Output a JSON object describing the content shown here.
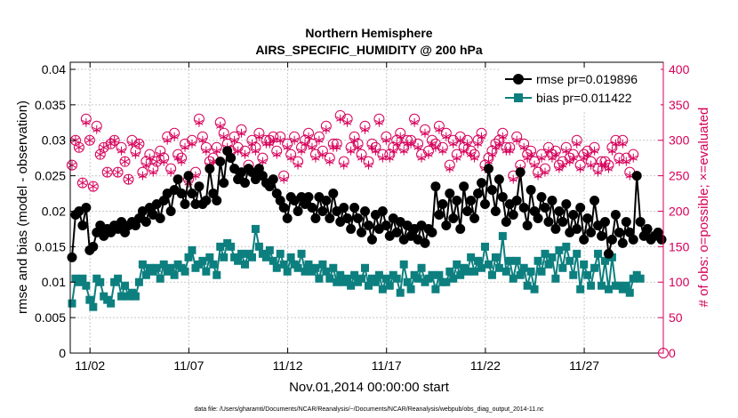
{
  "chart_data": {
    "type": "line",
    "title_line1": "Northern Hemisphere",
    "title_line2": "AIRS_SPECIFIC_HUMIDITY @ 200 hPa",
    "xlabel": "Nov.01,2014 00:00:00 start",
    "ylabel_left": "rmse and bias (model - observation)",
    "ylabel_right": "# of obs: o=possible; ×=evaluated",
    "footer": "data file: /Users/gharamti/Documents/NCAR/Reanalysis/~/Documents/NCAR/Reanalysis/webpub/obs_diag_output_2014-11.nc",
    "xlim": [
      0,
      30
    ],
    "ylim_left": [
      0,
      0.041
    ],
    "ylim_right": [
      0,
      410
    ],
    "x_ticks": [
      1,
      6,
      11,
      16,
      21,
      26
    ],
    "x_tick_labels": [
      "11/02",
      "11/07",
      "11/12",
      "11/17",
      "11/22",
      "11/27"
    ],
    "y_left_ticks": [
      0,
      0.005,
      0.01,
      0.015,
      0.02,
      0.025,
      0.03,
      0.035,
      0.04
    ],
    "y_left_tick_labels": [
      "0",
      "0.005",
      "0.01",
      "0.015",
      "0.02",
      "0.025",
      "0.03",
      "0.035",
      "0.04"
    ],
    "y_right_ticks": [
      0,
      50,
      100,
      150,
      200,
      250,
      300,
      350,
      400
    ],
    "y_right_tick_labels": [
      "0",
      "50",
      "100",
      "150",
      "200",
      "250",
      "300",
      "350",
      "400"
    ],
    "legend_position": "top-right",
    "grid": true,
    "colors": {
      "rmse": "#000000",
      "bias": "#0d7f7f",
      "obs": "#d6005a",
      "grid": "#c8c8c8"
    },
    "series": [
      {
        "name": "rmse pr=0.019896",
        "marker": "circle",
        "axis": "left",
        "values": [
          0.0135,
          0.0195,
          0.02,
          0.018,
          0.0205,
          0.0145,
          0.015,
          0.017,
          0.018,
          0.0165,
          0.0175,
          0.017,
          0.018,
          0.0175,
          0.0185,
          0.017,
          0.018,
          0.0185,
          0.018,
          0.019,
          0.02,
          0.0185,
          0.0205,
          0.0195,
          0.021,
          0.019,
          0.0215,
          0.0225,
          0.02,
          0.023,
          0.0245,
          0.0225,
          0.021,
          0.025,
          0.0225,
          0.021,
          0.0235,
          0.021,
          0.0215,
          0.026,
          0.0225,
          0.0215,
          0.027,
          0.024,
          0.0285,
          0.0275,
          0.026,
          0.0245,
          0.0255,
          0.024,
          0.026,
          0.0255,
          0.0245,
          0.026,
          0.025,
          0.024,
          0.0235,
          0.0245,
          0.0225,
          0.0215,
          0.0205,
          0.019,
          0.022,
          0.0215,
          0.02,
          0.022,
          0.021,
          0.022,
          0.0205,
          0.019,
          0.022,
          0.02,
          0.0215,
          0.019,
          0.0225,
          0.02,
          0.0185,
          0.0205,
          0.019,
          0.0175,
          0.0205,
          0.019,
          0.017,
          0.02,
          0.018,
          0.016,
          0.0195,
          0.0175,
          0.02,
          0.018,
          0.0165,
          0.019,
          0.017,
          0.0185,
          0.016,
          0.018,
          0.0165,
          0.0175,
          0.016,
          0.018,
          0.0155,
          0.0175,
          0.017,
          0.0235,
          0.0195,
          0.021,
          0.018,
          0.0225,
          0.019,
          0.0215,
          0.0175,
          0.0235,
          0.02,
          0.0215,
          0.019,
          0.0225,
          0.024,
          0.021,
          0.026,
          0.023,
          0.02,
          0.0245,
          0.022,
          0.0185,
          0.021,
          0.0195,
          0.0215,
          0.0255,
          0.0205,
          0.018,
          0.023,
          0.02,
          0.019,
          0.022,
          0.0205,
          0.0185,
          0.0215,
          0.0175,
          0.02,
          0.0185,
          0.021,
          0.017,
          0.0195,
          0.0175,
          0.0205,
          0.016,
          0.019,
          0.017,
          0.0215,
          0.018,
          0.0165,
          0.0185,
          0.014,
          0.016,
          0.0195,
          0.017,
          0.0155,
          0.0185,
          0.017,
          0.016,
          0.025,
          0.0185,
          0.0165,
          0.0175,
          0.016,
          0.0165,
          0.017,
          0.016
        ]
      },
      {
        "name": "bias pr=0.011422",
        "marker": "square",
        "axis": "left",
        "values": [
          0.007,
          0.0105,
          0.01,
          0.0105,
          0.0095,
          0.0075,
          0.0065,
          0.0105,
          0.01,
          0.008,
          0.0075,
          0.007,
          0.01,
          0.0105,
          0.008,
          0.0095,
          0.008,
          0.0085,
          0.008,
          0.01,
          0.0125,
          0.011,
          0.012,
          0.0115,
          0.012,
          0.0105,
          0.0125,
          0.0115,
          0.012,
          0.011,
          0.0125,
          0.012,
          0.0115,
          0.0135,
          0.0145,
          0.012,
          0.0125,
          0.013,
          0.0115,
          0.0135,
          0.0125,
          0.011,
          0.015,
          0.0135,
          0.0155,
          0.015,
          0.0135,
          0.013,
          0.014,
          0.0125,
          0.014,
          0.0135,
          0.0175,
          0.015,
          0.014,
          0.0135,
          0.0145,
          0.013,
          0.012,
          0.014,
          0.0125,
          0.0115,
          0.0135,
          0.0125,
          0.012,
          0.014,
          0.0115,
          0.0125,
          0.0115,
          0.012,
          0.0105,
          0.0125,
          0.0115,
          0.0105,
          0.012,
          0.01,
          0.011,
          0.01,
          0.0105,
          0.0095,
          0.011,
          0.01,
          0.0105,
          0.012,
          0.0095,
          0.0105,
          0.01,
          0.011,
          0.009,
          0.0105,
          0.0095,
          0.011,
          0.0105,
          0.0085,
          0.0125,
          0.01,
          0.009,
          0.011,
          0.0105,
          0.012,
          0.01,
          0.0105,
          0.011,
          0.009,
          0.011,
          0.01,
          0.01,
          0.0115,
          0.0105,
          0.0125,
          0.011,
          0.012,
          0.0115,
          0.0135,
          0.0115,
          0.013,
          0.012,
          0.015,
          0.0125,
          0.011,
          0.0135,
          0.012,
          0.0165,
          0.0115,
          0.013,
          0.0105,
          0.013,
          0.011,
          0.012,
          0.0095,
          0.0115,
          0.009,
          0.013,
          0.0115,
          0.014,
          0.0125,
          0.0135,
          0.0105,
          0.0145,
          0.012,
          0.015,
          0.013,
          0.011,
          0.014,
          0.009,
          0.0125,
          0.011,
          0.0095,
          0.012,
          0.014,
          0.0095,
          0.013,
          0.009,
          0.0135,
          0.0095,
          0.0095,
          0.009,
          0.0095,
          0.0085,
          0.0105,
          0.011,
          0.0105
        ]
      },
      {
        "name": "possible",
        "marker": "open-circle",
        "axis": "right",
        "values": [
          265,
          300,
          290,
          240,
          330,
          300,
          235,
          320,
          280,
          290,
          255,
          295,
          300,
          255,
          290,
          270,
          245,
          300,
          285,
          295,
          255,
          270,
          280,
          260,
          270,
          285,
          275,
          305,
          260,
          310,
          280,
          275,
          295,
          245,
          300,
          255,
          330,
          305,
          290,
          270,
          275,
          290,
          325,
          310,
          295,
          285,
          305,
          290,
          315,
          285,
          265,
          300,
          290,
          310,
          275,
          300,
          300,
          305,
          285,
          305,
          250,
          295,
          280,
          305,
          270,
          290,
          300,
          310,
          295,
          280,
          305,
          285,
          320,
          275,
          295,
          295,
          335,
          270,
          330,
          290,
          305,
          295,
          280,
          320,
          270,
          295,
          290,
          330,
          280,
          305,
          280,
          290,
          300,
          310,
          290,
          300,
          300,
          330,
          295,
          280,
          315,
          285,
          300,
          295,
          320,
          290,
          310,
          265,
          300,
          280,
          305,
          290,
          300,
          285,
          280,
          300,
          310,
          265,
          275,
          285,
          295,
          300,
          310,
          290,
          290,
          250,
          305,
          265,
          295,
          280,
          285,
          270,
          255,
          280,
          260,
          290,
          280,
          285,
          265,
          270,
          290,
          275,
          280,
          300,
          265,
          280,
          285,
          270,
          290,
          260,
          270,
          270,
          265,
          290,
          300,
          275,
          300,
          275,
          255,
          280
        ]
      },
      {
        "name": "evaluated",
        "marker": "asterisk",
        "axis": "right",
        "values": [
          265,
          300,
          290,
          240,
          325,
          300,
          235,
          315,
          280,
          290,
          255,
          295,
          300,
          255,
          285,
          270,
          245,
          295,
          280,
          295,
          250,
          265,
          275,
          255,
          270,
          280,
          270,
          300,
          255,
          305,
          275,
          270,
          290,
          240,
          295,
          250,
          325,
          300,
          285,
          265,
          270,
          285,
          320,
          305,
          290,
          280,
          300,
          285,
          310,
          280,
          260,
          295,
          285,
          305,
          270,
          295,
          295,
          300,
          280,
          300,
          245,
          290,
          275,
          300,
          265,
          285,
          295,
          305,
          290,
          275,
          300,
          280,
          315,
          270,
          290,
          290,
          330,
          265,
          325,
          285,
          300,
          290,
          275,
          315,
          265,
          290,
          285,
          325,
          275,
          300,
          275,
          285,
          295,
          305,
          285,
          295,
          295,
          325,
          290,
          275,
          310,
          280,
          295,
          290,
          315,
          285,
          305,
          260,
          295,
          275,
          300,
          285,
          295,
          280,
          275,
          295,
          305,
          260,
          270,
          280,
          290,
          295,
          305,
          285,
          285,
          245,
          300,
          260,
          290,
          275,
          280,
          265,
          250,
          275,
          255,
          285,
          275,
          280,
          260,
          265,
          285,
          270,
          275,
          295,
          260,
          275,
          280,
          265,
          285,
          255,
          265,
          265,
          260,
          285,
          295,
          270,
          295,
          270,
          250,
          275
        ]
      }
    ]
  }
}
